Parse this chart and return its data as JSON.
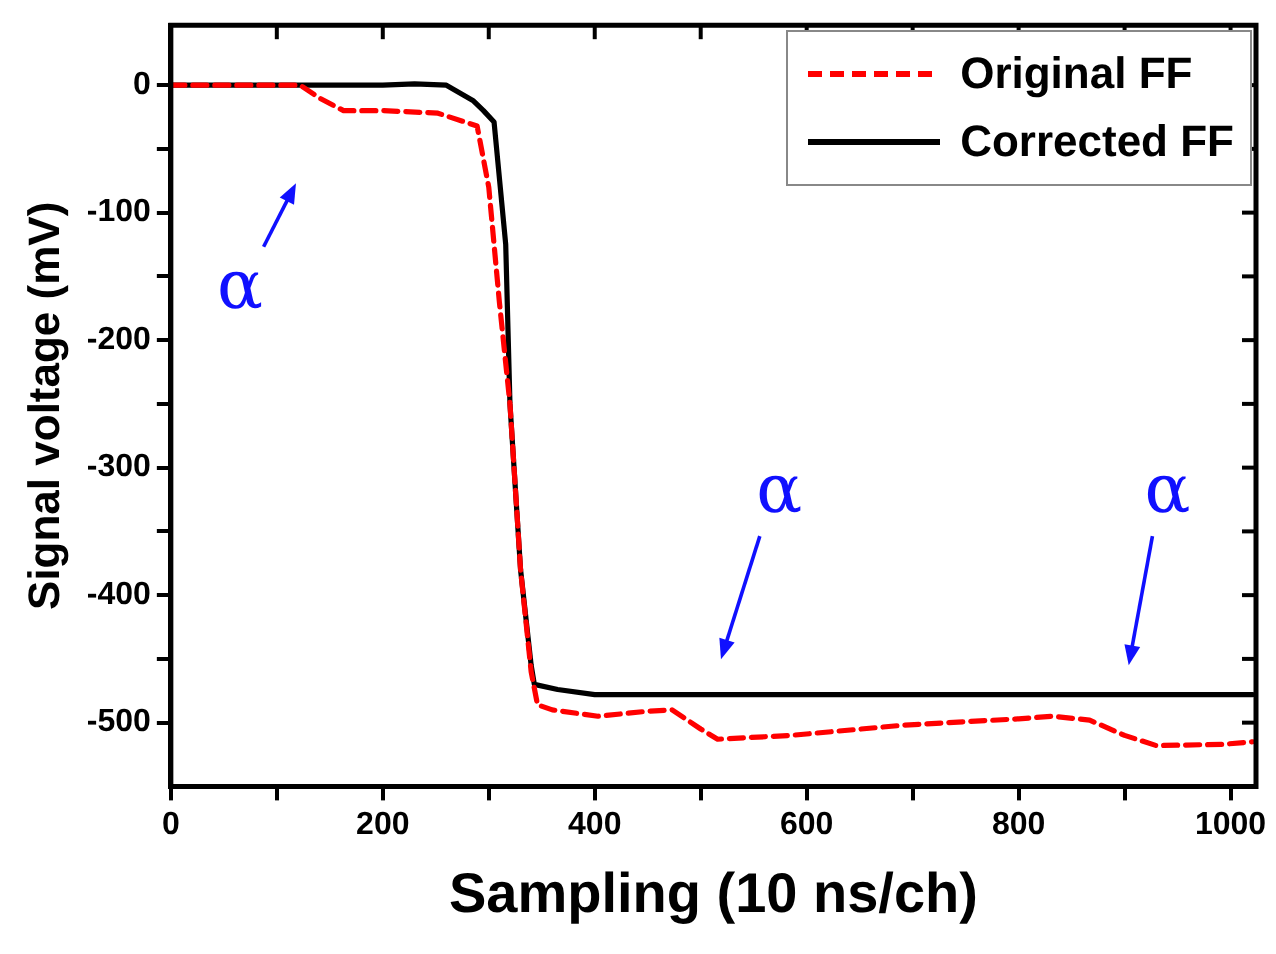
{
  "chart_data": {
    "type": "line",
    "xlabel": "Sampling (10 ns/ch)",
    "ylabel": "Signal voltage (mV)",
    "xlim": [
      0,
      1024
    ],
    "ylim": [
      -550,
      47
    ],
    "xticks": [
      0,
      {
        "value": 100,
        "label": null
      },
      200,
      {
        "value": 300,
        "label": null
      },
      400,
      {
        "value": 500,
        "label": null
      },
      600,
      {
        "value": 700,
        "label": null
      },
      800,
      {
        "value": 900,
        "label": null
      },
      1000
    ],
    "yticks": [
      -500,
      {
        "value": -450,
        "label": null
      },
      -400,
      {
        "value": -350,
        "label": null
      },
      -300,
      {
        "value": -250,
        "label": null
      },
      -200,
      {
        "value": -150,
        "label": null
      },
      -100,
      {
        "value": -50,
        "label": null
      },
      0
    ],
    "grid": false,
    "legend": "top right",
    "marker": "none",
    "series": [
      {
        "name": "Original FF",
        "color": "#ff0000",
        "line_style": "dashed",
        "x": [
          0,
          60,
          122,
          140,
          163,
          200,
          252,
          289,
          300,
          310,
          320,
          330,
          340,
          346,
          360,
          403,
          450,
          473,
          500,
          516,
          585,
          691,
          800,
          832,
          867,
          900,
          930,
          993,
          1021
        ],
        "values": [
          0,
          0,
          0,
          -10,
          -20,
          -20,
          -22,
          -32,
          -80,
          -170,
          -250,
          -380,
          -460,
          -486,
          -490,
          -495,
          -491,
          -490,
          -505,
          -513,
          -510,
          -502,
          -497,
          -495,
          -498,
          -510,
          -518,
          -517,
          -515
        ]
      },
      {
        "name": "Corrected FF",
        "color": "#000000",
        "line_style": "solid",
        "x": [
          0,
          200,
          230,
          260,
          285,
          295,
          305,
          316,
          320,
          330,
          340,
          343,
          365,
          400,
          600,
          800,
          1021
        ],
        "values": [
          0,
          0,
          1,
          0,
          -12,
          -20,
          -29,
          -125,
          -250,
          -380,
          -455,
          -470,
          -474,
          -478,
          -478,
          -478,
          -478
        ]
      }
    ],
    "annotations": [
      "α",
      "α",
      "α"
    ]
  }
}
